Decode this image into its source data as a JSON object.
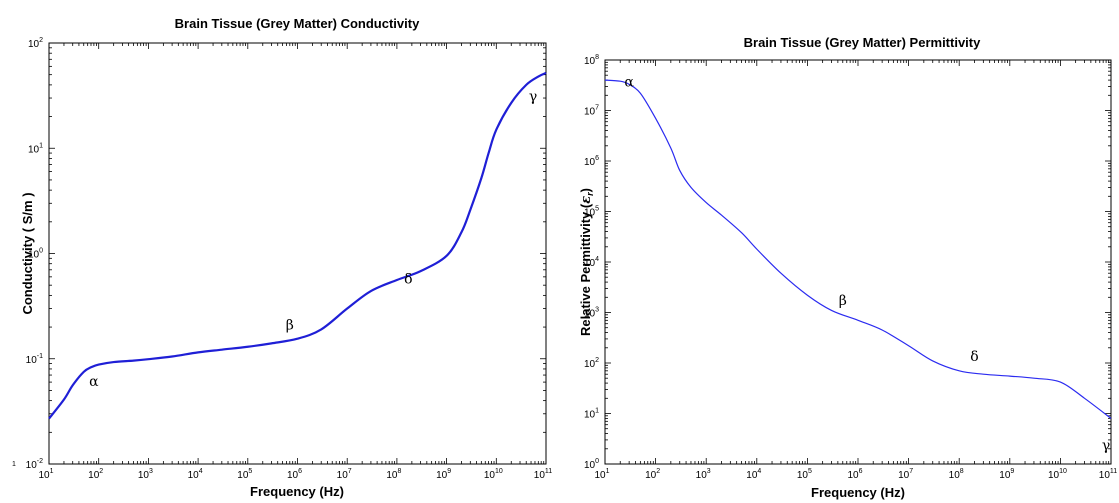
{
  "chart_data": [
    {
      "type": "line",
      "title": "Brain Tissue (Grey Matter) Conductivity",
      "xlabel": "Frequency (Hz)",
      "ylabel": "Conductivity  ( S/m )",
      "x_scale": "log",
      "y_scale": "log",
      "xlim": [
        10,
        100000000000
      ],
      "ylim": [
        0.01,
        100
      ],
      "x_ticks": [
        {
          "value": 10,
          "base": "10",
          "exp": "1"
        },
        {
          "value": 100,
          "base": "10",
          "exp": "2"
        },
        {
          "value": 1000,
          "base": "10",
          "exp": "3"
        },
        {
          "value": 10000,
          "base": "10",
          "exp": "4"
        },
        {
          "value": 100000,
          "base": "10",
          "exp": "5"
        },
        {
          "value": 1000000,
          "base": "10",
          "exp": "6"
        },
        {
          "value": 10000000,
          "base": "10",
          "exp": "7"
        },
        {
          "value": 100000000,
          "base": "10",
          "exp": "8"
        },
        {
          "value": 1000000000,
          "base": "10",
          "exp": "9"
        },
        {
          "value": 10000000000,
          "base": "10",
          "exp": "10"
        },
        {
          "value": 100000000000,
          "base": "10",
          "exp": "11"
        }
      ],
      "y_ticks": [
        {
          "value": 0.01,
          "base": "10",
          "exp": "-2"
        },
        {
          "value": 0.1,
          "base": "10",
          "exp": "-1"
        },
        {
          "value": 1,
          "base": "10",
          "exp": "0"
        },
        {
          "value": 10,
          "base": "10",
          "exp": "1"
        },
        {
          "value": 100,
          "base": "10",
          "exp": "2"
        }
      ],
      "grid": false,
      "color": "#1f1fd6",
      "line_width": 2.2,
      "series": [
        {
          "x": [
            10,
            20,
            30,
            50,
            70,
            100,
            200,
            500,
            1000,
            3000,
            10000,
            30000,
            100000,
            300000,
            1000000,
            3000000,
            10000000,
            30000000,
            100000000,
            300000000,
            1000000000,
            2000000000,
            3000000000,
            5000000000,
            7000000000,
            10000000000,
            20000000000,
            40000000000,
            70000000000,
            100000000000
          ],
          "y": [
            0.027,
            0.041,
            0.056,
            0.075,
            0.083,
            0.088,
            0.093,
            0.096,
            0.099,
            0.105,
            0.115,
            0.122,
            0.13,
            0.14,
            0.155,
            0.19,
            0.3,
            0.44,
            0.56,
            0.68,
            0.95,
            1.6,
            2.6,
            5.2,
            9,
            15,
            27,
            40,
            48,
            52
          ]
        }
      ],
      "annotations": [
        {
          "text": "α",
          "x": 80,
          "y": 0.055
        },
        {
          "text": "β",
          "x": 700000,
          "y": 0.19
        },
        {
          "text": "δ",
          "x": 170000000,
          "y": 0.52
        },
        {
          "text": "γ",
          "x": 55000000000,
          "y": 28
        }
      ],
      "side_mark": "1"
    },
    {
      "type": "line",
      "title": "Brain Tissue (Grey Matter) Permittivity",
      "xlabel": "Frequency (Hz)",
      "ylabel": "Relative Permittivity",
      "ylabel_symbol": "ε",
      "ylabel_subscript": "r",
      "x_scale": "log",
      "y_scale": "log",
      "xlim": [
        10,
        100000000000
      ],
      "ylim": [
        1,
        100000000
      ],
      "x_ticks": [
        {
          "value": 10,
          "base": "10",
          "exp": "1"
        },
        {
          "value": 100,
          "base": "10",
          "exp": "2"
        },
        {
          "value": 1000,
          "base": "10",
          "exp": "3"
        },
        {
          "value": 10000,
          "base": "10",
          "exp": "4"
        },
        {
          "value": 100000,
          "base": "10",
          "exp": "5"
        },
        {
          "value": 1000000,
          "base": "10",
          "exp": "6"
        },
        {
          "value": 10000000,
          "base": "10",
          "exp": "7"
        },
        {
          "value": 100000000,
          "base": "10",
          "exp": "8"
        },
        {
          "value": 1000000000,
          "base": "10",
          "exp": "9"
        },
        {
          "value": 10000000000,
          "base": "10",
          "exp": "10"
        },
        {
          "value": 100000000000,
          "base": "10",
          "exp": "11"
        }
      ],
      "y_ticks": [
        {
          "value": 1,
          "base": "10",
          "exp": "0"
        },
        {
          "value": 10,
          "base": "10",
          "exp": "1"
        },
        {
          "value": 100,
          "base": "10",
          "exp": "2"
        },
        {
          "value": 1000,
          "base": "10",
          "exp": "3"
        },
        {
          "value": 10000,
          "base": "10",
          "exp": "4"
        },
        {
          "value": 100000,
          "base": "10",
          "exp": "5"
        },
        {
          "value": 1000000,
          "base": "10",
          "exp": "6"
        },
        {
          "value": 10000000,
          "base": "10",
          "exp": "7"
        },
        {
          "value": 100000000,
          "base": "10",
          "exp": "8"
        }
      ],
      "grid": false,
      "color": "#2b2bf0",
      "line_width": 1.2,
      "series": [
        {
          "x": [
            10,
            20,
            30,
            50,
            100,
            200,
            300,
            500,
            1000,
            2000,
            5000,
            10000,
            30000,
            100000,
            300000,
            1000000,
            3000000,
            10000000,
            30000000,
            100000000,
            300000000,
            1000000000,
            3000000000,
            10000000000,
            30000000000,
            100000000000
          ],
          "y": [
            40000000,
            38000000,
            33000000,
            22000000,
            7000000,
            1800000,
            650000,
            300000,
            150000,
            85000,
            38000,
            18000,
            6000,
            2200,
            1100,
            700,
            450,
            220,
            110,
            70,
            60,
            55,
            50,
            42,
            20,
            8
          ]
        }
      ],
      "annotations": [
        {
          "text": "α",
          "x": 30,
          "y": 30000000
        },
        {
          "text": "β",
          "x": 500000,
          "y": 1400
        },
        {
          "text": "δ",
          "x": 200000000,
          "y": 110
        },
        {
          "text": "γ",
          "x": 80000000000,
          "y": 1.9
        }
      ]
    }
  ]
}
